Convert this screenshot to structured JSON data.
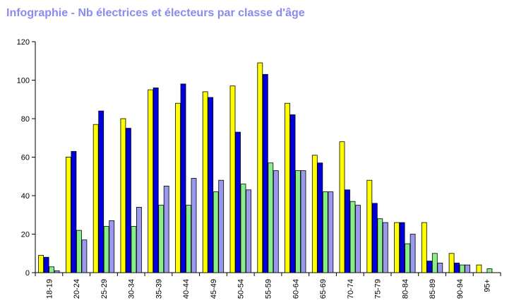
{
  "chart_data": {
    "type": "bar",
    "title": "Infographie - Nb électrices et électeurs par classe d'âge",
    "xlabel": "",
    "ylabel": "",
    "ylim": [
      0,
      120
    ],
    "yticks": [
      0,
      20,
      40,
      60,
      80,
      100,
      120
    ],
    "grid": false,
    "categories": [
      "18-19",
      "20-24",
      "25-29",
      "30-34",
      "35-39",
      "40-44",
      "45-49",
      "50-54",
      "55-59",
      "60-64",
      "65-69",
      "70-74",
      "75-79",
      "80-84",
      "85-89",
      "90-94",
      "95+"
    ],
    "series": [
      {
        "color": "#ffff00",
        "values": [
          9,
          60,
          77,
          80,
          95,
          88,
          94,
          97,
          109,
          88,
          61,
          68,
          48,
          26,
          26,
          10,
          4
        ]
      },
      {
        "color": "#0000dd",
        "values": [
          8,
          63,
          84,
          75,
          96,
          98,
          91,
          73,
          103,
          82,
          57,
          43,
          36,
          26,
          6,
          5,
          0
        ]
      },
      {
        "color": "#88ee88",
        "values": [
          3,
          22,
          24,
          24,
          35,
          35,
          42,
          46,
          57,
          53,
          42,
          37,
          28,
          15,
          10,
          4,
          2
        ]
      },
      {
        "color": "#9999ee",
        "values": [
          1,
          17,
          27,
          34,
          45,
          49,
          48,
          43,
          53,
          53,
          42,
          35,
          26,
          20,
          5,
          4,
          0
        ]
      }
    ]
  }
}
